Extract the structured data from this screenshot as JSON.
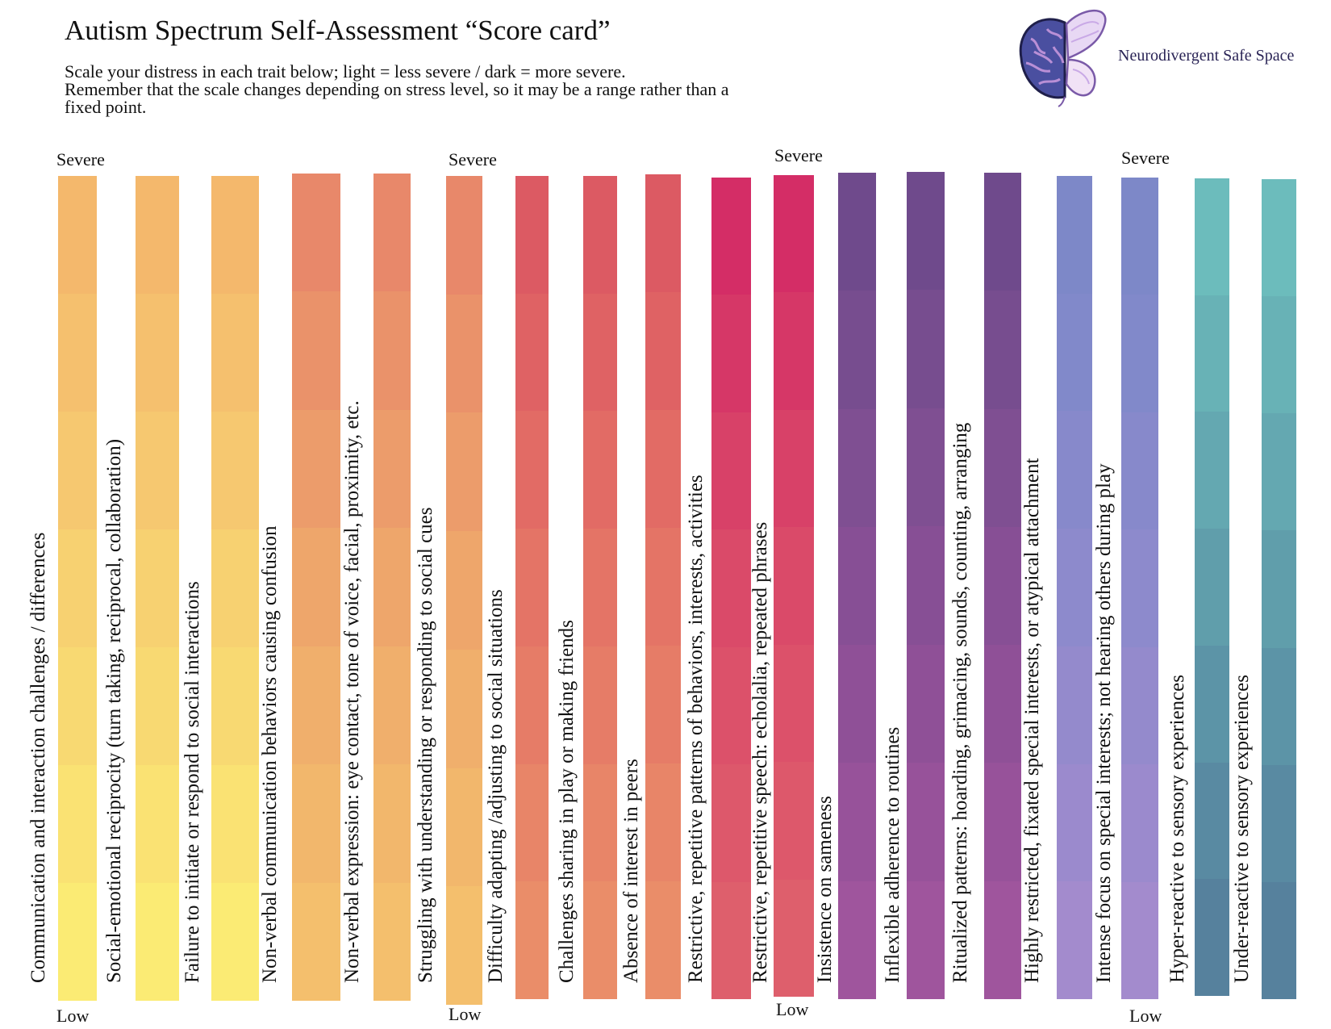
{
  "header": {
    "title": "Autism Spectrum Self-Assessment “Score card”",
    "subtitle_lines": [
      "Scale your distress in each trait below; light = less severe / dark = more severe.",
      "Remember that the scale changes depending on stress level, so it may be a range rather than a",
      "fixed point."
    ]
  },
  "logo": {
    "name": "Neurodivergent Safe Space",
    "icon": "brain-butterfly-icon"
  },
  "scale": {
    "severe_label": "Severe",
    "low_label": "Low"
  },
  "traits": [
    {
      "label": "Communication and interaction challenges / differences",
      "colors": [
        "#f4b86c",
        "#f5c06e",
        "#f6c870",
        "#f7d171",
        "#f8d972",
        "#fae273",
        "#fbeb74"
      ]
    },
    {
      "label": "Social-emotional reciprocity (turn taking, reciprocal, collaboration)",
      "colors": [
        "#f4b86c",
        "#f5c06e",
        "#f6c870",
        "#f7d171",
        "#f8d972",
        "#fae273",
        "#fbeb74"
      ]
    },
    {
      "label": "Failure to initiate or respond to social interactions",
      "colors": [
        "#f4b86c",
        "#f5c06e",
        "#f6c870",
        "#f7d171",
        "#f8d972",
        "#fae273",
        "#fbeb74"
      ]
    },
    {
      "label": "Non-verbal communication behaviors causing confusion",
      "colors": [
        "#e8886a",
        "#ea926a",
        "#ec9c6b",
        "#eea66b",
        "#f0af6c",
        "#f2b76c",
        "#f4bf6d"
      ]
    },
    {
      "label": "Non-verbal expression: eye contact, tone of voice, facial, proximity, etc.",
      "colors": [
        "#e8886a",
        "#ea926a",
        "#ec9c6b",
        "#eea66b",
        "#f0af6c",
        "#f2b76c",
        "#f4bf6d"
      ]
    },
    {
      "label": "Struggling with understanding or responding to social cues",
      "colors": [
        "#e8886a",
        "#ea926a",
        "#ec9c6b",
        "#eea66b",
        "#f0af6c",
        "#f2b76c",
        "#f4bf6d"
      ]
    },
    {
      "label": "Difficulty adapting /adjusting to social situations",
      "colors": [
        "#dc5a63",
        "#df6264",
        "#e26b65",
        "#e47466",
        "#e67c67",
        "#e88568",
        "#ea8d69"
      ]
    },
    {
      "label": "Challenges sharing in play or making friends",
      "colors": [
        "#dc5a63",
        "#df6264",
        "#e26b65",
        "#e47466",
        "#e67c67",
        "#e88568",
        "#ea8d69"
      ]
    },
    {
      "label": "Absence of interest in peers",
      "colors": [
        "#dc5a63",
        "#df6264",
        "#e26b65",
        "#e47466",
        "#e67c67",
        "#e88568",
        "#ea8d69"
      ]
    },
    {
      "label": "Restrictive, repetitive patterns of behaviors, interests, activities",
      "colors": [
        "#d42d66",
        "#d63767",
        "#d84168",
        "#da4a69",
        "#dc516a",
        "#dd586b",
        "#de5f6c"
      ]
    },
    {
      "label": "Restrictive, repetitive speech: echolalia, repeated phrases",
      "colors": [
        "#d42d66",
        "#d63767",
        "#d84168",
        "#da4a69",
        "#dc516a",
        "#dd586b",
        "#de5f6c"
      ]
    },
    {
      "label": "Insistence on sameness",
      "colors": [
        "#6f4a8c",
        "#774d8f",
        "#7f4f92",
        "#874f95",
        "#8f5097",
        "#97529a",
        "#9f559d"
      ]
    },
    {
      "label": "Inflexible adherence to routines",
      "colors": [
        "#6f4a8c",
        "#774d8f",
        "#7f4f92",
        "#874f95",
        "#8f5097",
        "#97529a",
        "#9f559d"
      ]
    },
    {
      "label": "Ritualized patterns: hoarding, grimacing, sounds, counting, arranging",
      "colors": [
        "#6f4a8c",
        "#774d8f",
        "#7f4f92",
        "#874f95",
        "#8f5097",
        "#97529a",
        "#9f559d"
      ]
    },
    {
      "label": "Highly restricted, fixated special interests, or atypical attachment",
      "colors": [
        "#7d88c8",
        "#8189ca",
        "#8789cb",
        "#8d8acc",
        "#948acc",
        "#9b8acd",
        "#a38bcd"
      ]
    },
    {
      "label": "Intense focus on special interests; not hearing others during play",
      "colors": [
        "#7d88c8",
        "#8189ca",
        "#8789cb",
        "#8d8acc",
        "#948acc",
        "#9b8acd",
        "#a38bcd"
      ]
    },
    {
      "label": "Hyper-reactive to sensory experiences",
      "colors": [
        "#6cbcbc",
        "#68b2b6",
        "#64a8b1",
        "#609eab",
        "#5c94a7",
        "#598aa2",
        "#56819d"
      ]
    },
    {
      "label": "Under-reactive to sensory experiences",
      "colors": [
        "#6cbcbc",
        "#68b2b6",
        "#64a8b1",
        "#609eab",
        "#5c94a7",
        "#598aa2",
        "#56819d"
      ]
    }
  ]
}
